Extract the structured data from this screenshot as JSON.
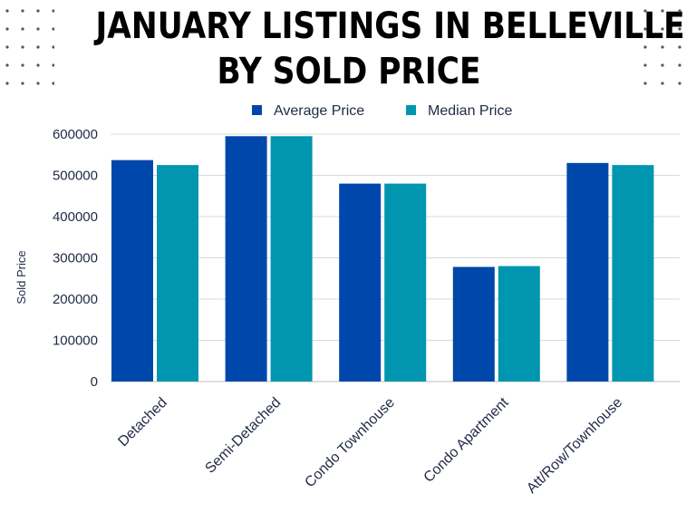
{
  "title_lines": [
    "JANUARY LISTINGS IN BELLEVILLE",
    "BY SOLD PRICE"
  ],
  "colors": {
    "average": "#0047ab",
    "median": "#0096b0",
    "grid": "#d9d9d9",
    "dots": "#555555"
  },
  "chart_data": {
    "type": "bar",
    "title": "JANUARY LISTINGS IN BELLEVILLE BY SOLD PRICE",
    "categories": [
      "Detached",
      "Semi-Detached",
      "Condo Townhouse",
      "Condo Apartment",
      "Att/Row/Townhouse"
    ],
    "series": [
      {
        "name": "Average Price",
        "values": [
          537000,
          595000,
          480000,
          278000,
          530000
        ]
      },
      {
        "name": "Median Price",
        "values": [
          525000,
          595000,
          480000,
          280000,
          525000
        ]
      }
    ],
    "ylabel": "Sold Price",
    "xlabel": "",
    "ylim": [
      0,
      600000
    ],
    "yticks": [
      0,
      100000,
      200000,
      300000,
      400000,
      500000,
      600000
    ],
    "grid": true,
    "legend": "top-center"
  }
}
